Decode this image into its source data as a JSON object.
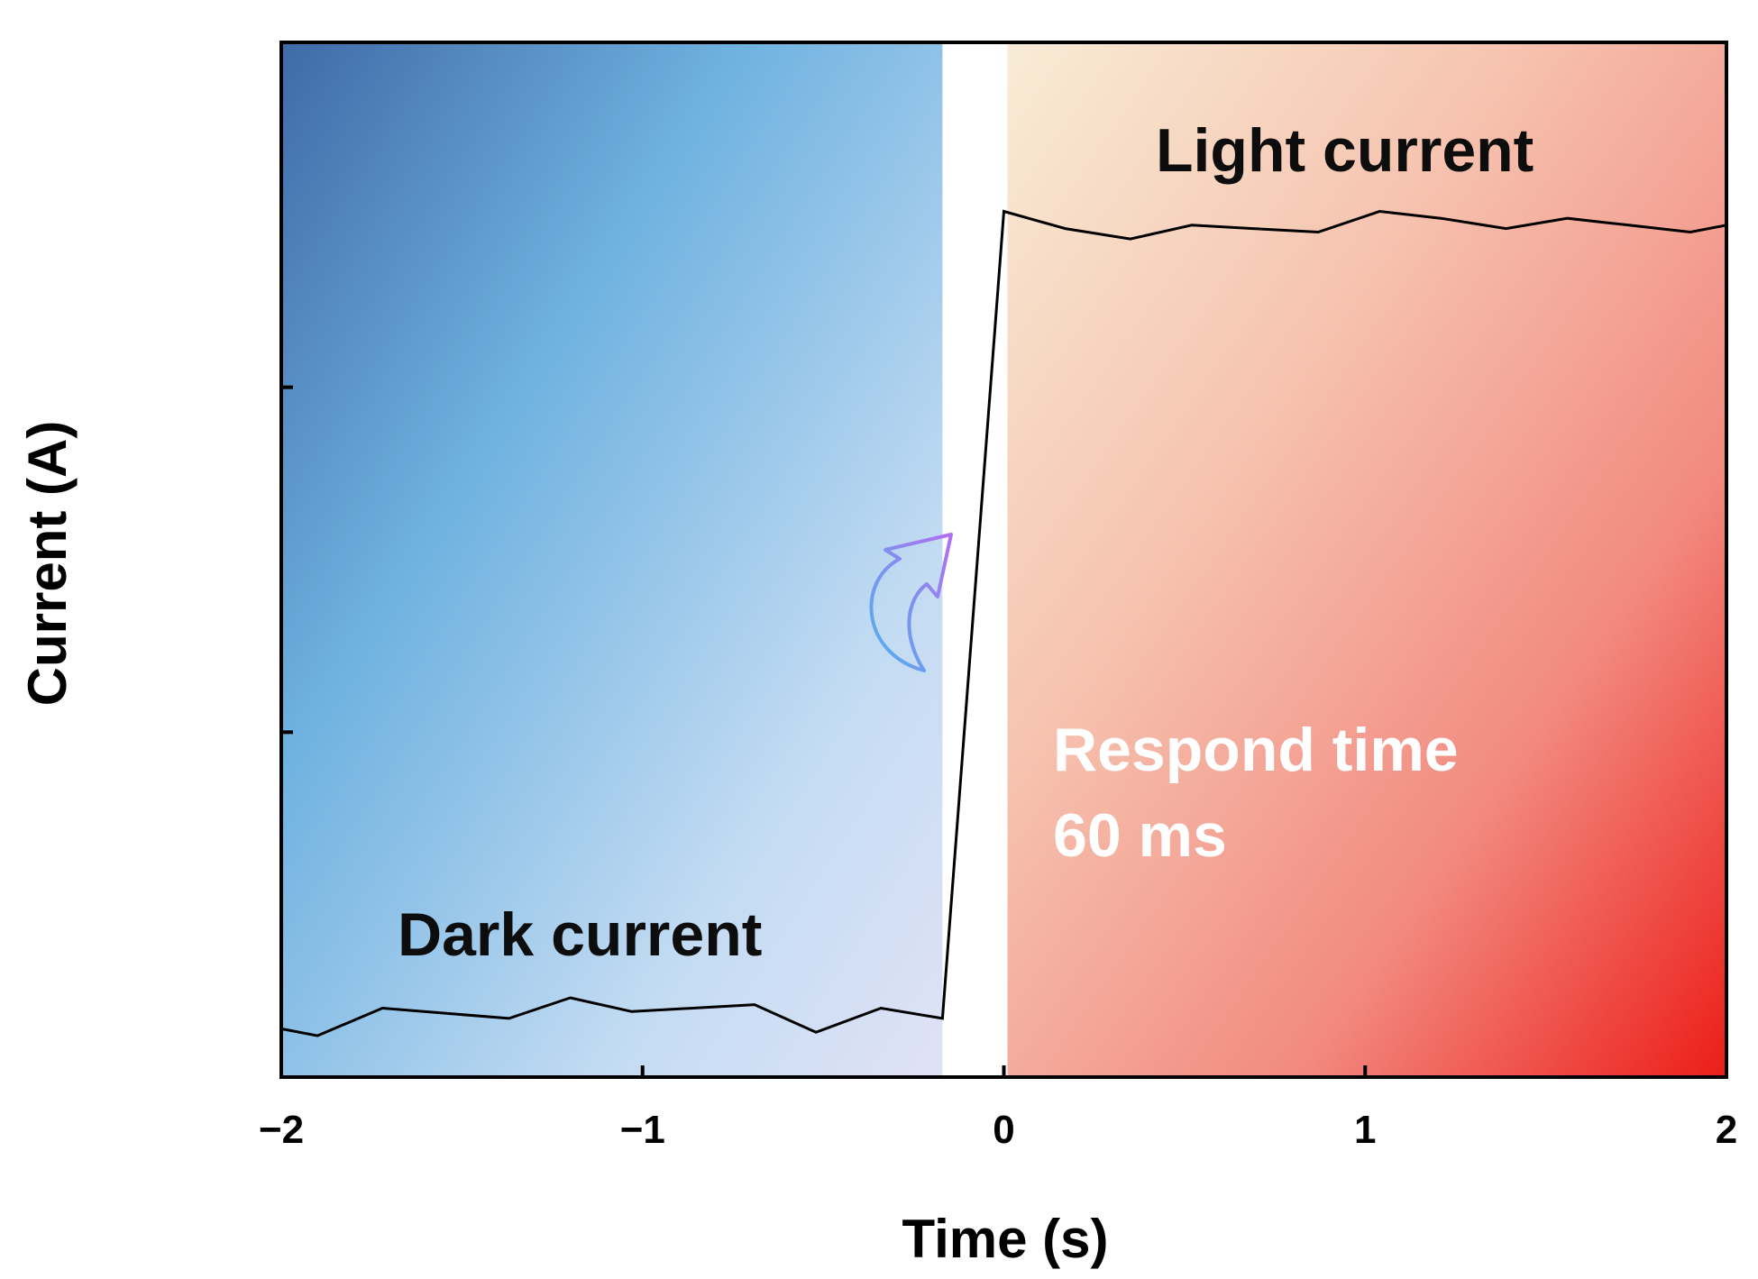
{
  "chart_data": {
    "type": "line",
    "xlabel": "Time (s)",
    "ylabel": "Current (A)",
    "xlim": [
      -2,
      2
    ],
    "ylim": [
      0,
      3
    ],
    "x_ticks": [
      "−2",
      "−1",
      "0",
      "1",
      "2"
    ],
    "x_tick_values": [
      -2,
      -1,
      0,
      1,
      2
    ],
    "y_tick_values": [
      1,
      2
    ],
    "grid": false,
    "background_regions": [
      {
        "name": "dark",
        "from": -2,
        "to": -0.17,
        "colors": [
          "#3f6aa6",
          "#6fb2e0",
          "#c4dcf3",
          "#e0e2f6"
        ]
      },
      {
        "name": "light",
        "from": 0.01,
        "to": 2,
        "colors": [
          "#f8ecd6",
          "#f6c4b0",
          "#f28a80",
          "#ec1d18"
        ]
      }
    ],
    "series": [
      {
        "color": "#000000",
        "x": [
          -2.0,
          -1.9,
          -1.72,
          -1.37,
          -1.2,
          -1.03,
          -0.69,
          -0.52,
          -0.34,
          -0.17,
          0.0,
          0.17,
          0.35,
          0.52,
          0.69,
          0.87,
          1.04,
          1.21,
          1.39,
          1.56,
          1.73,
          1.9,
          2.0
        ],
        "y": [
          0.14,
          0.12,
          0.2,
          0.17,
          0.23,
          0.19,
          0.21,
          0.13,
          0.2,
          0.17,
          2.51,
          2.46,
          2.43,
          2.47,
          2.46,
          2.45,
          2.51,
          2.49,
          2.46,
          2.49,
          2.47,
          2.45,
          2.47
        ]
      }
    ],
    "annotations": [
      {
        "text": "Light current",
        "x": 1.05,
        "y": 2.6,
        "style": "dark"
      },
      {
        "text": "Dark current",
        "x": -1.2,
        "y": 0.35,
        "style": "dark"
      },
      {
        "text": "Respond time",
        "x": 0.8,
        "y": 0.95,
        "style": "white"
      },
      {
        "text": "60 ms",
        "x": 0.45,
        "y": 0.7,
        "style": "white"
      }
    ],
    "arrow": {
      "icon": "curved-arrow-icon",
      "colors": [
        "#4fb3ee",
        "#b26ef0"
      ]
    }
  }
}
